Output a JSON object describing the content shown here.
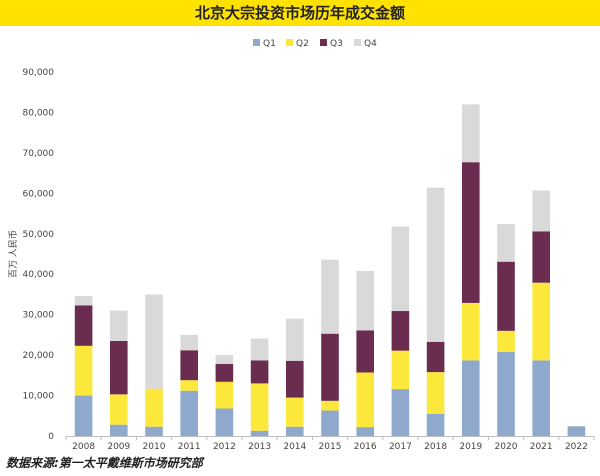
{
  "chart_data": {
    "type": "bar",
    "stacked": true,
    "title": "北京大宗投资市场历年成交金额",
    "ylabel": "百万 人民币",
    "xlabel": "",
    "ylim": [
      0,
      90000
    ],
    "yticks": [
      "0",
      "10,000",
      "20,000",
      "30,000",
      "40,000",
      "50,000",
      "60,000",
      "70,000",
      "80,000",
      "90,000"
    ],
    "categories": [
      "2008",
      "2009",
      "2010",
      "2011",
      "2012",
      "2013",
      "2014",
      "2015",
      "2016",
      "2017",
      "2018",
      "2019",
      "2020",
      "2021",
      "2022"
    ],
    "legend_position": "top",
    "series": [
      {
        "name": "Q1",
        "color": "#8fa9cc",
        "values": [
          10000,
          2800,
          2300,
          11200,
          6800,
          1300,
          2300,
          6300,
          2200,
          11600,
          5500,
          18700,
          20800,
          18700,
          2400
        ]
      },
      {
        "name": "Q2",
        "color": "#fce83a",
        "values": [
          12300,
          7500,
          9400,
          2600,
          6600,
          11700,
          7200,
          2400,
          13500,
          9500,
          10300,
          14200,
          5200,
          19200,
          0
        ]
      },
      {
        "name": "Q3",
        "color": "#6b2d4f",
        "values": [
          10000,
          13200,
          0,
          7400,
          4400,
          5700,
          9100,
          16600,
          10400,
          9800,
          7500,
          34800,
          17100,
          12700,
          0
        ]
      },
      {
        "name": "Q4",
        "color": "#d9d9d9",
        "values": [
          2300,
          7500,
          23300,
          3800,
          2200,
          5400,
          10400,
          18300,
          14700,
          20900,
          38100,
          14300,
          9300,
          10100,
          0
        ]
      }
    ]
  },
  "source": "数据来源:第一太平戴维斯市场研究部"
}
